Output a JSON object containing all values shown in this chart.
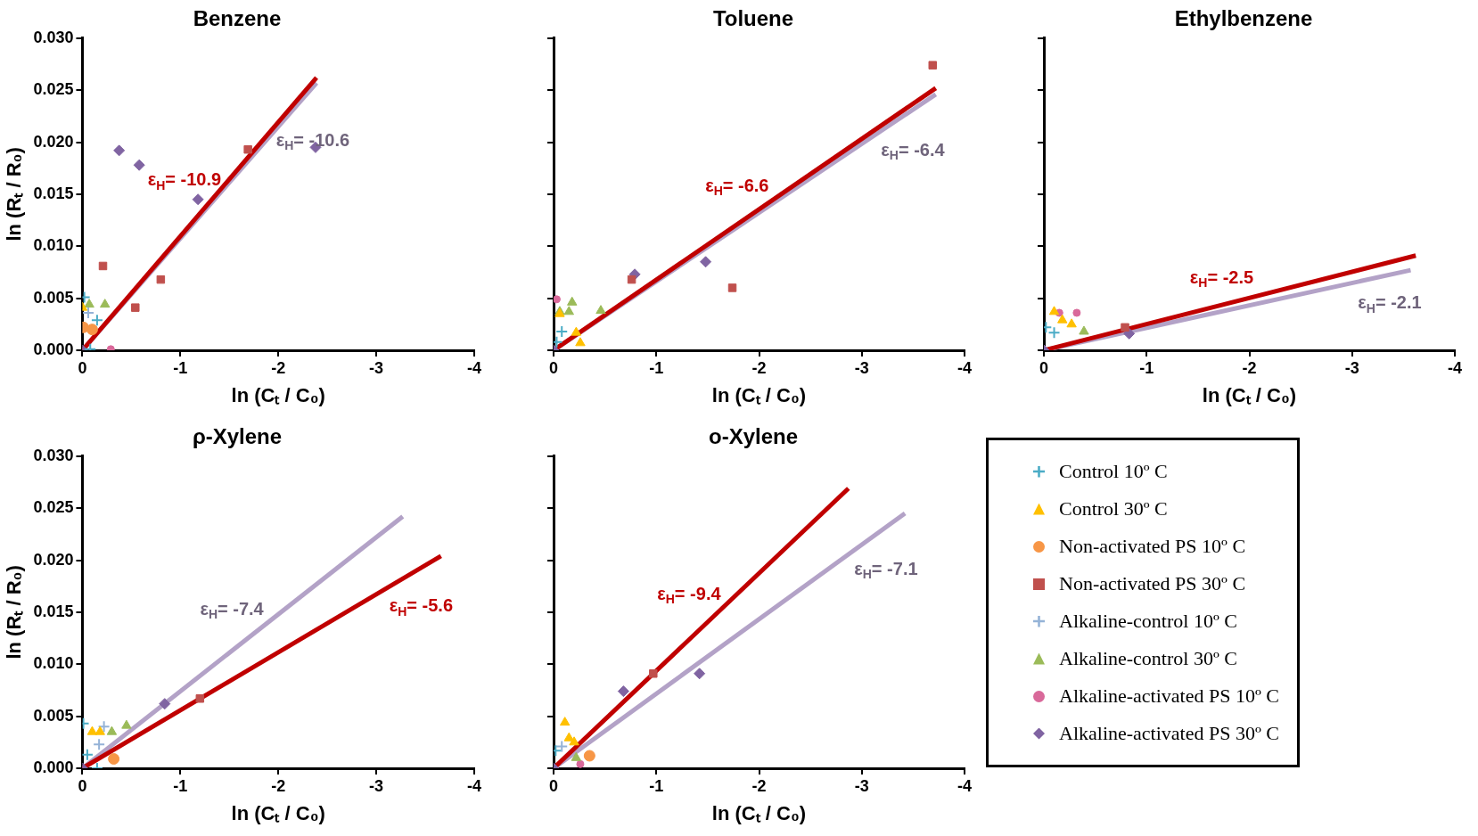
{
  "chart_data": [
    {
      "type": "scatter",
      "title": "Benzene",
      "xlabel": "ln (Cₜ / C₀)",
      "ylabel": "ln (Rₜ / R₀)",
      "xlim": [
        0,
        -4
      ],
      "xticks": [
        0,
        -1,
        -2,
        -3,
        -4
      ],
      "ylim": [
        0,
        0.03
      ],
      "yticks": [
        {
          "value": 0,
          "label": "0.000"
        },
        {
          "value": 0.005,
          "label": "0.005"
        },
        {
          "value": 0.01,
          "label": "0.010"
        },
        {
          "value": 0.015,
          "label": "0.015"
        },
        {
          "value": 0.02,
          "label": "0.020"
        },
        {
          "value": 0.025,
          "label": "0.025"
        },
        {
          "value": 0.03,
          "label": "0.030"
        }
      ],
      "series": [
        {
          "color": "#4bacc6",
          "marker": "cross",
          "x": [
            -0.02,
            -0.15,
            -0.08
          ],
          "values": [
            0.0051,
            0.0029,
            0.0001
          ]
        },
        {
          "color": "#ffc000",
          "marker": "triangle",
          "x": [
            0
          ],
          "values": [
            0.0041
          ]
        },
        {
          "color": "#f79646",
          "marker": "circle",
          "x": [
            -0.01,
            -0.1
          ],
          "values": [
            0.0022,
            0.002
          ]
        },
        {
          "color": "#c0504d",
          "marker": "square",
          "x": [
            -0.21,
            -0.54,
            -0.8,
            -1.69
          ],
          "values": [
            0.0081,
            0.0041,
            0.0068,
            0.0193
          ]
        },
        {
          "color": "#95b3d7",
          "marker": "cross",
          "x": [
            -0.06
          ],
          "values": [
            0.0036
          ]
        },
        {
          "color": "#9bbb59",
          "marker": "triangle",
          "x": [
            -0.07,
            -0.23
          ],
          "values": [
            0.0044,
            0.0044
          ]
        },
        {
          "color": "#d9699a",
          "x": [
            -0.29
          ],
          "values": [
            0.0001
          ]
        },
        {
          "color": "#8064a2",
          "marker": "diamond",
          "x": [
            0,
            -0.375,
            -0.58,
            -1.18,
            -2.38
          ],
          "values": [
            0,
            0.0192,
            0.0178,
            0.0145,
            0.0195
          ]
        },
        {
          "type": "line",
          "color": "#c00000",
          "marker": "none",
          "x": [
            0,
            -2.39
          ],
          "values": [
            0,
            0.0262
          ]
        },
        {
          "type": "line",
          "color": "#b3a2c7",
          "marker": "none",
          "x": [
            0,
            -2.39
          ],
          "values": [
            0,
            0.0257
          ]
        }
      ],
      "annotations": [
        "ε$_{H}$= -10.9",
        "ε$_{H}$= -10.6"
      ]
    },
    {
      "type": "scatter",
      "title": "Toluene",
      "xlabel": "ln (Cₜ / C₀)",
      "xlim": [
        0,
        -4
      ],
      "xticks": [
        0,
        -1,
        -2,
        -3,
        -4
      ],
      "ylim": [
        0,
        0.03
      ],
      "yticks": [
        {
          "value": 0,
          "label": null
        },
        {
          "value": 0.005,
          "label": null
        },
        {
          "value": 0.01,
          "label": null
        },
        {
          "value": 0.015,
          "label": null
        },
        {
          "value": 0.02,
          "label": null
        },
        {
          "value": 0.025,
          "label": null
        },
        {
          "value": 0.03,
          "label": null
        }
      ],
      "tick_labels": "x",
      "series": [
        {
          "color": "#4bacc6",
          "marker": "cross",
          "x": [
            -0.08,
            -0.03
          ],
          "values": [
            0.0018,
            0.0008
          ]
        },
        {
          "color": "#ffc000",
          "marker": "triangle",
          "x": [
            -0.06,
            -0.26,
            -0.22
          ],
          "values": [
            0.0035,
            0.0007,
            0.0017
          ]
        },
        {
          "color": "#c0504d",
          "marker": "square",
          "x": [
            -0.76,
            -1.74,
            -3.69
          ],
          "values": [
            0.0068,
            0.006,
            0.0274
          ]
        },
        {
          "color": "#9bbb59",
          "marker": "triangle",
          "x": [
            -0.06,
            -0.18,
            -0.46,
            -0.15
          ],
          "values": [
            0.0037,
            0.0046,
            0.0038,
            0.0037
          ]
        },
        {
          "color": "#d9699a",
          "x": [
            -0.03
          ],
          "values": [
            0.0049
          ]
        },
        {
          "color": "#8064a2",
          "marker": "diamond",
          "x": [
            0,
            -0.79,
            -1.48
          ],
          "values": [
            0,
            0.0073,
            0.0085
          ]
        },
        {
          "type": "line",
          "color": "#c00000",
          "marker": "none",
          "x": [
            0,
            -3.72
          ],
          "values": [
            0,
            0.0252
          ]
        },
        {
          "type": "line",
          "color": "#b3a2c7",
          "marker": "none",
          "x": [
            0,
            -3.72
          ],
          "values": [
            0,
            0.0246
          ]
        }
      ],
      "annotations": [
        "ε$_{H}$= -6.6",
        "ε$_{H}$= -6.4"
      ]
    },
    {
      "type": "scatter",
      "title": "Ethylbenzene",
      "xlabel": "ln (Cₜ / C₀)",
      "xlim": [
        0,
        -4
      ],
      "xticks": [
        0,
        -1,
        -2,
        -3,
        -4
      ],
      "ylim": [
        0,
        0.03
      ],
      "yticks": [
        {
          "value": 0,
          "label": null
        },
        {
          "value": 0.005,
          "label": null
        },
        {
          "value": 0.01,
          "label": null
        },
        {
          "value": 0.015,
          "label": null
        },
        {
          "value": 0.02,
          "label": null
        },
        {
          "value": 0.025,
          "label": null
        },
        {
          "value": 0.03,
          "label": null
        }
      ],
      "tick_labels": "x",
      "series": [
        {
          "color": "#4bacc6",
          "marker": "cross",
          "x": [
            -0.02,
            -0.1
          ],
          "values": [
            0.0022,
            0.0017
          ]
        },
        {
          "color": "#ffc000",
          "marker": "triangle",
          "x": [
            -0.1,
            -0.18,
            -0.27
          ],
          "values": [
            0.0037,
            0.0029,
            0.0025
          ]
        },
        {
          "color": "#c0504d",
          "marker": "square",
          "x": [
            -0.79
          ],
          "values": [
            0.0022
          ]
        },
        {
          "color": "#9bbb59",
          "marker": "triangle",
          "x": [
            -0.39
          ],
          "values": [
            0.0018
          ]
        },
        {
          "color": "#d9699a",
          "x": [
            -0.15,
            -0.32
          ],
          "values": [
            0.0036,
            0.0036
          ]
        },
        {
          "color": "#8064a2",
          "marker": "diamond",
          "x": [
            0,
            -0.83
          ],
          "values": [
            0,
            0.0016
          ]
        },
        {
          "type": "line",
          "color": "#c00000",
          "marker": "none",
          "x": [
            0,
            -3.62
          ],
          "values": [
            0,
            0.0091
          ]
        },
        {
          "type": "line",
          "color": "#b3a2c7",
          "marker": "none",
          "x": [
            0,
            -3.57
          ],
          "values": [
            0,
            0.0077
          ]
        }
      ],
      "annotations": [
        "ε$_{H}$= -2.5",
        "ε$_{H}$= -2.1"
      ]
    },
    {
      "type": "scatter",
      "title": "ρ-Xylene",
      "xlabel": "ln (Cₜ / C₀)",
      "ylabel": "ln (Rₜ / R₀)",
      "xlim": [
        0,
        -4
      ],
      "xticks": [
        0,
        -1,
        -2,
        -3,
        -4
      ],
      "ylim": [
        0,
        0.03
      ],
      "yticks": [
        {
          "value": 0,
          "label": "0.000"
        },
        {
          "value": 0.005,
          "label": "0.005"
        },
        {
          "value": 0.01,
          "label": "0.010"
        },
        {
          "value": 0.015,
          "label": "0.015"
        },
        {
          "value": 0.02,
          "label": "0.020"
        },
        {
          "value": 0.025,
          "label": "0.025"
        },
        {
          "value": 0.03,
          "label": "0.030"
        }
      ],
      "series": [
        {
          "color": "#4bacc6",
          "marker": "cross",
          "x": [
            -0.01,
            -0.05,
            -0.15
          ],
          "values": [
            0.0043,
            0.0013,
            0
          ]
        },
        {
          "color": "#ffc000",
          "marker": "triangle",
          "x": [
            -0.1,
            -0.18
          ],
          "values": [
            0.0035,
            0.0035
          ]
        },
        {
          "color": "#f79646",
          "marker": "circle",
          "x": [
            -0.32
          ],
          "values": [
            0.0009
          ]
        },
        {
          "color": "#c0504d",
          "marker": "square",
          "x": [
            -1.2
          ],
          "values": [
            0.0067
          ]
        },
        {
          "color": "#95b3d7",
          "marker": "cross",
          "x": [
            -0.22,
            -0.17
          ],
          "values": [
            0.004,
            0.0023
          ]
        },
        {
          "color": "#9bbb59",
          "marker": "triangle",
          "x": [
            -0.3,
            -0.45
          ],
          "values": [
            0.0035,
            0.0041
          ]
        },
        {
          "color": "#8064a2",
          "marker": "diamond",
          "x": [
            0,
            -0.84
          ],
          "values": [
            0,
            0.0062
          ]
        },
        {
          "type": "line",
          "color": "#c00000",
          "marker": "none",
          "x": [
            0,
            -3.66
          ],
          "values": [
            0,
            0.0204
          ]
        },
        {
          "type": "line",
          "color": "#b3a2c7",
          "marker": "none",
          "x": [
            0,
            -3.27
          ],
          "values": [
            0,
            0.0242
          ]
        }
      ],
      "annotations": [
        "ε$_{H}$= -5.6",
        "ε$_{H}$= -7.4"
      ]
    },
    {
      "type": "scatter",
      "title": "o-Xylene",
      "xlabel": "ln (Cₜ / C₀)",
      "xlim": [
        0,
        -4
      ],
      "xticks": [
        0,
        -1,
        -2,
        -3,
        -4
      ],
      "ylim": [
        0,
        0.03
      ],
      "yticks": [
        {
          "value": 0,
          "label": null
        },
        {
          "value": 0.005,
          "label": null
        },
        {
          "value": 0.01,
          "label": null
        },
        {
          "value": 0.015,
          "label": null
        },
        {
          "value": 0.02,
          "label": null
        },
        {
          "value": 0.025,
          "label": null
        },
        {
          "value": 0.03,
          "label": null
        }
      ],
      "tick_labels": "x",
      "legend": "right",
      "series": [
        {
          "name": "Control 10º C",
          "color": "#4bacc6",
          "marker": "cross",
          "x": [
            -0.02
          ],
          "values": [
            0.0017
          ]
        },
        {
          "name": "Control 30º C",
          "color": "#ffc000",
          "marker": "triangle",
          "x": [
            -0.11,
            -0.15,
            -0.2
          ],
          "values": [
            0.0044,
            0.0029,
            0.0025
          ]
        },
        {
          "name": "Non-activated PS  10º C",
          "color": "#f79646",
          "marker": "circle",
          "x": [
            -0.35
          ],
          "values": [
            0.0012
          ]
        },
        {
          "name": "Non-activated PS  30º C",
          "color": "#c0504d",
          "marker": "square",
          "x": [
            -0.97
          ],
          "values": [
            0.0091
          ]
        },
        {
          "name": "Alkaline-control 10º C",
          "color": "#95b3d7",
          "marker": "cross",
          "x": [
            -0.08
          ],
          "values": [
            0.0021
          ]
        },
        {
          "name": "Alkaline-control 30º C",
          "color": "#9bbb59",
          "marker": "triangle",
          "x": [
            -0.22
          ],
          "values": [
            0.001
          ]
        },
        {
          "name": "Alkaline-activated PS  10º C",
          "color": "#d9699a",
          "x": [
            -0.26
          ],
          "values": [
            0.0004
          ]
        },
        {
          "name": "Alkaline-activated PS  30º C",
          "color": "#8064a2",
          "marker": "diamond",
          "x": [
            0,
            -0.68,
            -1.42
          ],
          "values": [
            0,
            0.0074,
            0.0091
          ]
        },
        {
          "type": "line",
          "color": "#c00000",
          "marker": "none",
          "x": [
            0,
            -2.87
          ],
          "values": [
            0,
            0.0269
          ]
        },
        {
          "type": "line",
          "color": "#b3a2c7",
          "marker": "none",
          "x": [
            0,
            -3.42
          ],
          "values": [
            0,
            0.0245
          ]
        }
      ],
      "annotations": [
        "ε$_{H}$= -9.4",
        "ε$_{H}$= -7.1"
      ]
    }
  ]
}
